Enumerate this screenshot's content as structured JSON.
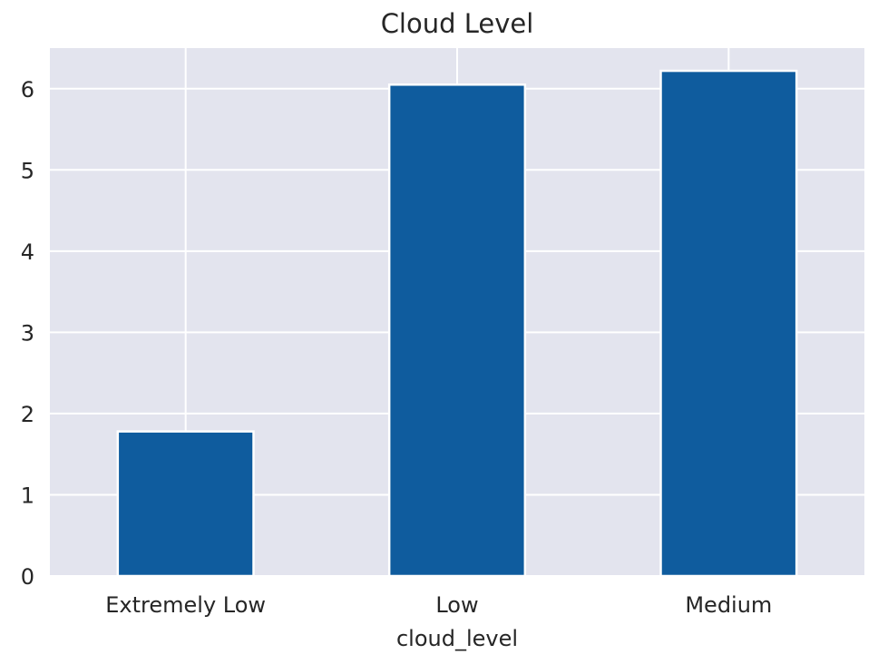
{
  "chart_data": {
    "type": "bar",
    "title": "Cloud Level",
    "xlabel": "cloud_level",
    "ylabel": "",
    "categories": [
      "Extremely Low",
      "Low",
      "Medium"
    ],
    "values": [
      1.78,
      6.05,
      6.22
    ],
    "ylim": [
      0,
      6.5
    ],
    "yticks": [
      0,
      1,
      2,
      3,
      4,
      5,
      6
    ],
    "grid": true,
    "legend": "none",
    "colors": {
      "bar": "#0f5c9e",
      "plot_background": "#e3e4ee",
      "grid": "#ffffff",
      "text": "#262626"
    }
  }
}
